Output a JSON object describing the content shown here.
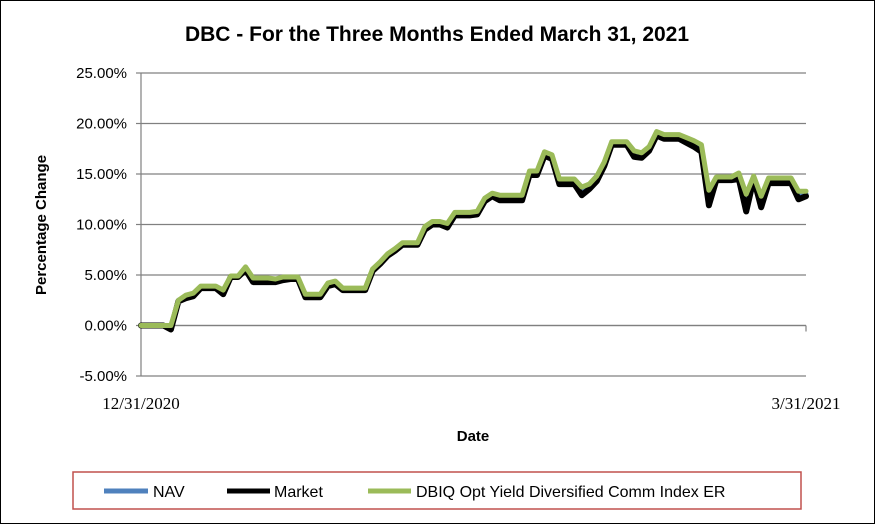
{
  "chart_data": {
    "type": "line",
    "title": "DBC - For the Three Months Ended March 31, 2021",
    "xlabel": "Date",
    "ylabel": "Percentage Change",
    "x_tick_labels": [
      "12/31/2020",
      "3/31/2021"
    ],
    "y_tick_labels": [
      "25.00%",
      "20.00%",
      "15.00%",
      "10.00%",
      "5.00%",
      "0.00%",
      "-5.00%"
    ],
    "y_ticks": [
      25,
      20,
      15,
      10,
      5,
      0,
      -5
    ],
    "ylim": [
      -5,
      25
    ],
    "grid": true,
    "legend_position": "bottom",
    "colors": {
      "NAV": "#4f81bd",
      "Market": "#000000",
      "Index": "#9bbb59",
      "legend_border": "#c0504d",
      "grid": "#808080"
    },
    "series": [
      {
        "name": "NAV",
        "values": [
          0,
          0,
          0,
          0,
          -0.2,
          2.5,
          2.8,
          3.0,
          3.8,
          3.8,
          3.8,
          3.3,
          4.8,
          4.8,
          5.6,
          4.5,
          4.5,
          4.5,
          4.5,
          4.6,
          4.7,
          4.7,
          3.0,
          3.0,
          3.0,
          4.0,
          4.2,
          3.6,
          3.6,
          3.6,
          3.6,
          5.5,
          6.2,
          7.0,
          7.5,
          8.1,
          8.1,
          8.1,
          9.6,
          10.1,
          10.1,
          9.9,
          11.0,
          11.0,
          11.0,
          11.1,
          12.4,
          12.9,
          12.6,
          12.6,
          12.6,
          12.6,
          15.0,
          15.0,
          16.9,
          16.6,
          14.2,
          14.2,
          14.2,
          13.2,
          13.7,
          14.5,
          15.9,
          18.0,
          18.0,
          18.0,
          16.9,
          16.8,
          17.5,
          19.0,
          18.7,
          18.7,
          18.7,
          18.3,
          18.0,
          17.5,
          12.6,
          14.5,
          14.5,
          14.5,
          14.7,
          11.8,
          14.6,
          12.0,
          14.3,
          14.3,
          14.3,
          14.3,
          12.8,
          13.0
        ],
        "color": "#4f81bd"
      },
      {
        "name": "Market",
        "values": [
          0,
          0,
          0,
          0,
          -0.4,
          2.4,
          2.7,
          2.9,
          3.7,
          3.7,
          3.7,
          3.1,
          4.8,
          4.8,
          5.5,
          4.3,
          4.3,
          4.3,
          4.3,
          4.5,
          4.6,
          4.6,
          2.8,
          2.8,
          2.8,
          3.9,
          4.1,
          3.5,
          3.5,
          3.5,
          3.5,
          5.4,
          6.1,
          6.9,
          7.4,
          8.0,
          8.0,
          8.0,
          9.5,
          10.0,
          10.0,
          9.7,
          10.9,
          10.9,
          10.9,
          11.0,
          12.3,
          12.8,
          12.4,
          12.4,
          12.4,
          12.4,
          14.9,
          14.9,
          16.8,
          16.5,
          14.0,
          14.0,
          14.0,
          12.9,
          13.5,
          14.3,
          15.8,
          17.9,
          17.9,
          17.9,
          16.7,
          16.6,
          17.3,
          18.8,
          18.5,
          18.5,
          18.5,
          18.1,
          17.7,
          17.2,
          11.9,
          14.4,
          14.4,
          14.4,
          14.5,
          11.3,
          14.5,
          11.7,
          14.1,
          14.1,
          14.1,
          14.1,
          12.5,
          12.8
        ],
        "color": "#000000"
      },
      {
        "name": "DBIQ Opt Yield Diversified Comm Index ER",
        "values": [
          0,
          0,
          0,
          0,
          0,
          2.5,
          3.0,
          3.2,
          3.9,
          3.9,
          3.9,
          3.5,
          4.9,
          4.9,
          5.8,
          4.7,
          4.7,
          4.7,
          4.6,
          4.8,
          4.8,
          4.8,
          3.1,
          3.1,
          3.1,
          4.2,
          4.4,
          3.7,
          3.7,
          3.7,
          3.7,
          5.6,
          6.3,
          7.1,
          7.6,
          8.2,
          8.2,
          8.2,
          9.8,
          10.3,
          10.3,
          10.1,
          11.2,
          11.2,
          11.2,
          11.3,
          12.6,
          13.1,
          12.9,
          12.9,
          12.9,
          12.9,
          15.3,
          15.3,
          17.2,
          16.9,
          14.5,
          14.5,
          14.5,
          13.7,
          14.0,
          14.8,
          16.2,
          18.2,
          18.2,
          18.2,
          17.3,
          17.1,
          17.7,
          19.2,
          18.9,
          18.9,
          18.9,
          18.6,
          18.3,
          17.9,
          13.4,
          14.7,
          14.7,
          14.7,
          15.1,
          13.0,
          14.8,
          12.8,
          14.6,
          14.6,
          14.6,
          14.6,
          13.3,
          13.3
        ],
        "color": "#9bbb59"
      }
    ]
  }
}
